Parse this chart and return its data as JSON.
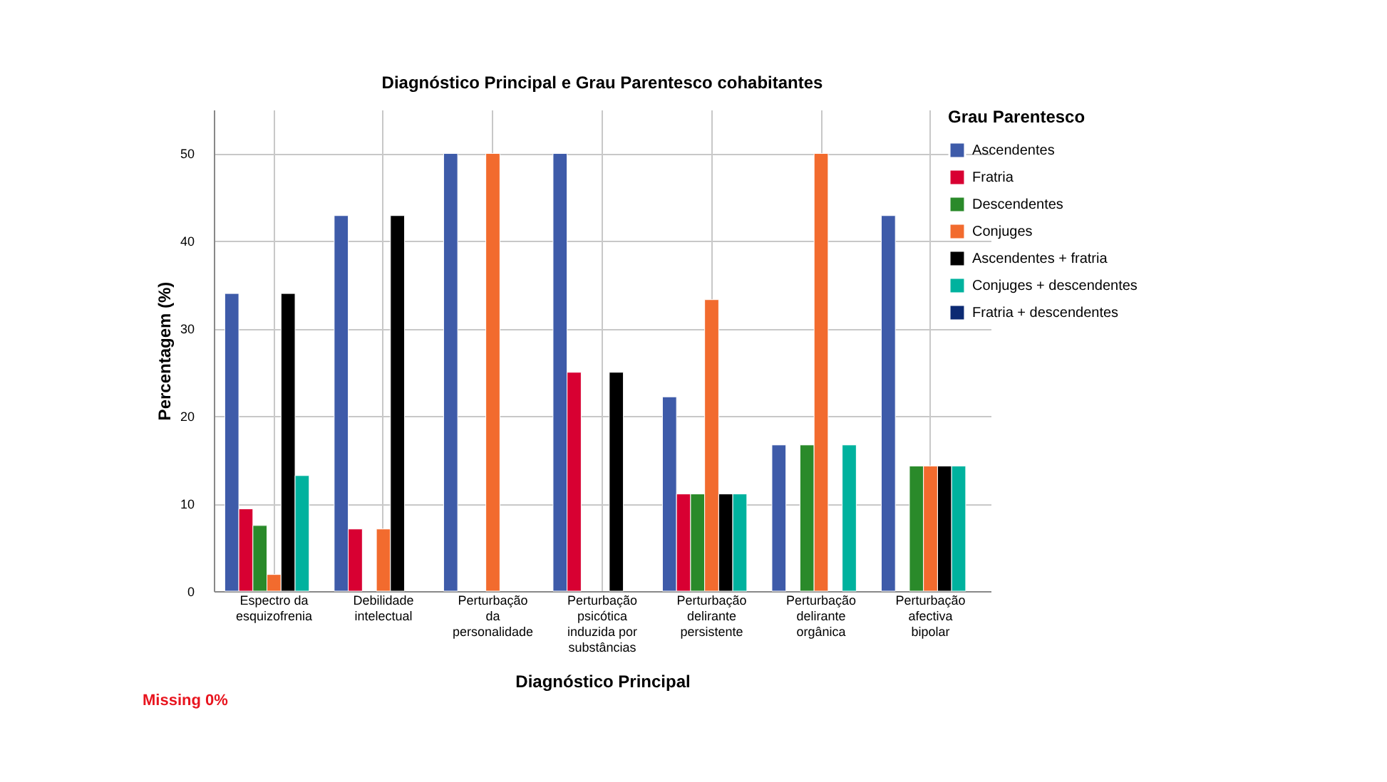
{
  "chart_data": {
    "type": "bar",
    "title": "Diagnóstico Principal e Grau Parentesco cohabitantes",
    "xlabel": "Diagnóstico Principal",
    "ylabel": "Percentagem (%)",
    "legend_title": "Grau Parentesco",
    "categories": [
      "Espectro da\nesquizofrenia",
      "Debilidade\nintelectual",
      "Perturbação\nda\npersonalidade",
      "Perturbação\npsicótica\ninduzida por\nsubstâncias",
      "Perturbação\ndelirante\npersistente",
      "Perturbação\ndelirante\norgânica",
      "Perturbação\nafectiva\nbipolar"
    ],
    "series": [
      {
        "name": "Ascendentes",
        "color": "#3e5ba9",
        "values": [
          34,
          42.9,
          50,
          50,
          22.2,
          16.7,
          42.9
        ]
      },
      {
        "name": "Fratria",
        "color": "#d80032",
        "values": [
          9.4,
          7.1,
          null,
          25,
          11.1,
          null,
          null
        ]
      },
      {
        "name": "Descendentes",
        "color": "#2a8a2a",
        "values": [
          7.5,
          null,
          null,
          null,
          11.1,
          16.7,
          14.3
        ]
      },
      {
        "name": "Conjuges",
        "color": "#f26b2e",
        "values": [
          1.9,
          7.1,
          50,
          null,
          33.3,
          50,
          14.3
        ]
      },
      {
        "name": "Ascendentes + fratria",
        "color": "#000000",
        "values": [
          34,
          42.9,
          null,
          25,
          11.1,
          null,
          14.3
        ]
      },
      {
        "name": "Conjuges + descendentes",
        "color": "#00b29e",
        "values": [
          13.2,
          null,
          null,
          null,
          11.1,
          16.7,
          14.3
        ]
      },
      {
        "name": "Fratria + descendentes",
        "color": "#0c2a73",
        "values": [
          null,
          null,
          null,
          null,
          null,
          null,
          null
        ]
      }
    ],
    "ylim": [
      0,
      55
    ],
    "yticks": [
      0,
      10,
      20,
      30,
      40,
      50
    ],
    "grid": true,
    "legend": "right",
    "annotations": [
      "Missing 0%"
    ]
  }
}
